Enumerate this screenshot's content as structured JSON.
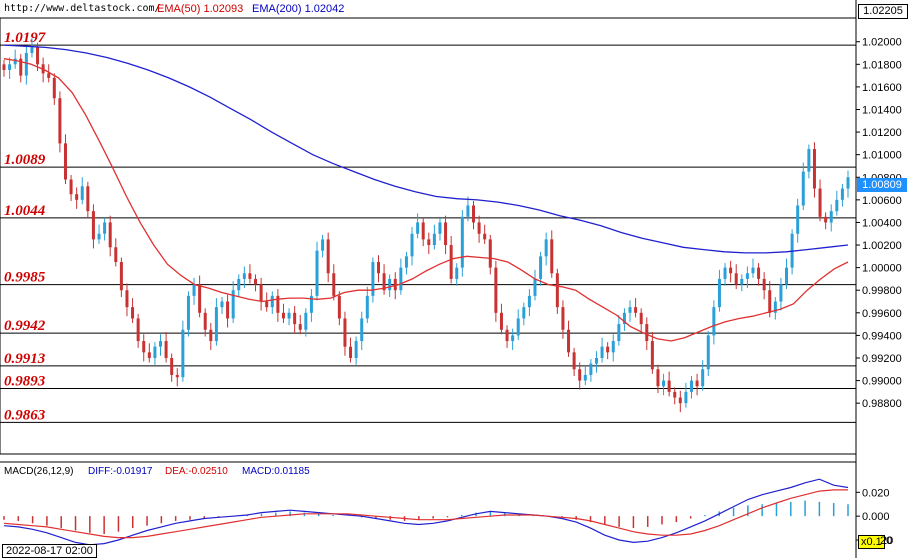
{
  "header": {
    "site": "http://www.deltastock.com/",
    "ema50_label": "EMA(50)  1.02093",
    "ema200_label": "EMA(200)  1.02042"
  },
  "macd_header": {
    "name": "MACD(26,12,9)",
    "diff": "DIFF:-0.01917",
    "dea": "DEA:-0.02510",
    "macd": "MACD:0.01185"
  },
  "footer": {
    "date": "2022-08-17 02:00",
    "zoom": "x0.1",
    "zoom_value": "20"
  },
  "price_box": {
    "top": "1.02205",
    "current": "1.00809"
  },
  "colors": {
    "bull": "#2aa0d8",
    "bear": "#c83232",
    "ema50": "#e03030",
    "ema200": "#2020d0"
  },
  "chart_data": {
    "type": "line",
    "title": "",
    "ylim": [
      0.9835,
      1.0221
    ],
    "yticks": [
      "1.02000",
      "1.01800",
      "1.01600",
      "1.01400",
      "1.01200",
      "1.01000",
      "1.00800",
      "1.00600",
      "1.00400",
      "1.00200",
      "1.00000",
      "0.99800",
      "0.99600",
      "0.99400",
      "0.99200",
      "0.99000",
      "0.98800"
    ],
    "levels": [
      "1.0197",
      "1.0089",
      "1.0044",
      "0.9985",
      "0.9942",
      "0.9913",
      "0.9893",
      "0.9863"
    ],
    "closes": [
      1.0175,
      1.018,
      1.0185,
      1.017,
      1.019,
      1.0195,
      1.018,
      1.0172,
      1.0168,
      1.015,
      1.011,
      1.0078,
      1.0065,
      1.006,
      1.0072,
      1.005,
      1.0025,
      1.003,
      1.004,
      1.0018,
      1.0005,
      0.998,
      0.9965,
      0.9955,
      0.9935,
      0.9925,
      0.992,
      0.993,
      0.9935,
      0.992,
      0.9905,
      0.9903,
      0.9945,
      0.9975,
      0.9985,
      0.996,
      0.9945,
      0.9935,
      0.9965,
      0.997,
      0.9955,
      0.998,
      0.999,
      0.9995,
      0.999,
      0.9985,
      0.997,
      0.9965,
      0.9975,
      0.996,
      0.9955,
      0.996,
      0.995,
      0.9945,
      0.996,
      0.9975,
      1.0015,
      1.0025,
      0.9995,
      0.9975,
      0.9955,
      0.993,
      0.992,
      0.9935,
      0.9955,
      0.9975,
      1.0005,
      0.9995,
      0.998,
      0.999,
      0.998,
      1.0,
      1.001,
      1.003,
      1.004,
      1.0025,
      1.002,
      1.003,
      1.004,
      1.002,
      0.999,
      1.0,
      1.0045,
      1.0055,
      1.004,
      1.003,
      1.0025,
      1.0,
      0.996,
      0.9945,
      0.9935,
      0.994,
      0.9955,
      0.9965,
      0.9975,
      0.999,
      1.001,
      1.0025,
      0.9995,
      0.9965,
      0.9945,
      0.9925,
      0.991,
      0.99,
      0.9905,
      0.9915,
      0.992,
      0.993,
      0.9925,
      0.9935,
      0.995,
      0.996,
      0.9965,
      0.996,
      0.995,
      0.9935,
      0.991,
      0.9895,
      0.99,
      0.989,
      0.9885,
      0.988,
      0.989,
      0.99,
      0.9895,
      0.991,
      0.994,
      0.9965,
      0.999,
      1.0,
      0.9995,
      0.9985,
      0.999,
      0.9995,
      1.0,
      0.999,
      0.998,
      0.996,
      0.997,
      0.9985,
      1.0,
      1.003,
      1.0055,
      1.0085,
      1.0105,
      1.007,
      1.0045,
      1.004,
      1.005,
      1.006,
      1.007,
      1.008
    ],
    "ema50": [
      1.0185,
      1.0183,
      1.018,
      1.0175,
      1.0168,
      1.0155,
      1.0135,
      1.0112,
      1.0088,
      1.0063,
      1.004,
      1.002,
      1.0003,
      0.9993,
      0.9985,
      0.9982,
      0.9978,
      0.9975,
      0.9972,
      0.997,
      0.9972,
      0.9973,
      0.9973,
      0.9972,
      0.9973,
      0.9978,
      0.998,
      0.998,
      0.9982,
      0.9985,
      0.999,
      0.9997,
      1.0003,
      1.0008,
      1.001,
      1.0009,
      1.0008,
      1.0005,
      0.9998,
      0.999,
      0.9985,
      0.9983,
      0.998,
      0.9972,
      0.9965,
      0.9958,
      0.9948,
      0.9942,
      0.9937,
      0.9935,
      0.9938,
      0.9943,
      0.9948,
      0.9952,
      0.9955,
      0.9957,
      0.996,
      0.9963,
      0.9968,
      0.998,
      0.999,
      0.9999,
      1.0005
    ],
    "ema200": [
      1.0197,
      1.0196,
      1.0195,
      1.0193,
      1.019,
      1.0186,
      1.0181,
      1.0175,
      1.0168,
      1.016,
      1.0151,
      1.0141,
      1.0131,
      1.012,
      1.011,
      1.01,
      1.0092,
      1.0085,
      1.0078,
      1.0072,
      1.0067,
      1.0063,
      1.0061,
      1.006,
      1.0058,
      1.0055,
      1.0051,
      1.0046,
      1.0042,
      1.0037,
      1.0031,
      1.0026,
      1.0022,
      1.0018,
      1.0016,
      1.0014,
      1.0013,
      1.0013,
      1.0014,
      1.0016,
      1.0018,
      1.002
    ],
    "macd_yticks": [
      "0.020",
      "0.000",
      "-0.020"
    ],
    "macd_hist": [
      -0.003,
      -0.004,
      -0.006,
      -0.008,
      -0.01,
      -0.012,
      -0.014,
      -0.015,
      -0.013,
      -0.01,
      -0.008,
      -0.006,
      -0.004,
      -0.003,
      -0.002,
      -0.001,
      0.0,
      0.001,
      0.002,
      0.003,
      0.004,
      0.003,
      0.002,
      0.001,
      0.0,
      -0.001,
      -0.002,
      -0.003,
      -0.004,
      -0.003,
      -0.002,
      -0.001,
      0.001,
      0.003,
      0.004,
      0.003,
      0.002,
      0.001,
      0.0,
      -0.001,
      -0.003,
      -0.005,
      -0.007,
      -0.009,
      -0.01,
      -0.009,
      -0.007,
      -0.005,
      -0.002,
      0.001,
      0.004,
      0.007,
      0.009,
      0.01,
      0.011,
      0.012,
      0.013,
      0.012,
      0.011,
      0.01
    ],
    "macd_diff": [
      -0.008,
      -0.009,
      -0.011,
      -0.014,
      -0.018,
      -0.022,
      -0.024,
      -0.023,
      -0.02,
      -0.016,
      -0.012,
      -0.009,
      -0.006,
      -0.004,
      -0.002,
      -0.001,
      0.0,
      0.001,
      0.003,
      0.004,
      0.005,
      0.004,
      0.003,
      0.002,
      0.001,
      0.0,
      -0.002,
      -0.004,
      -0.006,
      -0.007,
      -0.006,
      -0.004,
      -0.001,
      0.002,
      0.004,
      0.003,
      0.002,
      0.001,
      0.0,
      -0.002,
      -0.005,
      -0.01,
      -0.016,
      -0.02,
      -0.022,
      -0.021,
      -0.018,
      -0.014,
      -0.009,
      -0.004,
      0.002,
      0.008,
      0.014,
      0.018,
      0.021,
      0.024,
      0.028,
      0.031,
      0.026,
      0.024
    ],
    "macd_dea": [
      -0.006,
      -0.007,
      -0.008,
      -0.009,
      -0.011,
      -0.013,
      -0.015,
      -0.017,
      -0.018,
      -0.018,
      -0.017,
      -0.015,
      -0.013,
      -0.011,
      -0.009,
      -0.007,
      -0.005,
      -0.003,
      -0.001,
      0.0,
      0.001,
      0.002,
      0.002,
      0.002,
      0.002,
      0.001,
      0.0,
      -0.001,
      -0.002,
      -0.003,
      -0.003,
      -0.003,
      -0.002,
      -0.001,
      0.0,
      0.001,
      0.001,
      0.001,
      0.0,
      -0.001,
      -0.002,
      -0.004,
      -0.007,
      -0.01,
      -0.013,
      -0.015,
      -0.016,
      -0.016,
      -0.015,
      -0.012,
      -0.008,
      -0.003,
      0.002,
      0.007,
      0.011,
      0.015,
      0.018,
      0.021,
      0.022,
      0.022
    ]
  }
}
